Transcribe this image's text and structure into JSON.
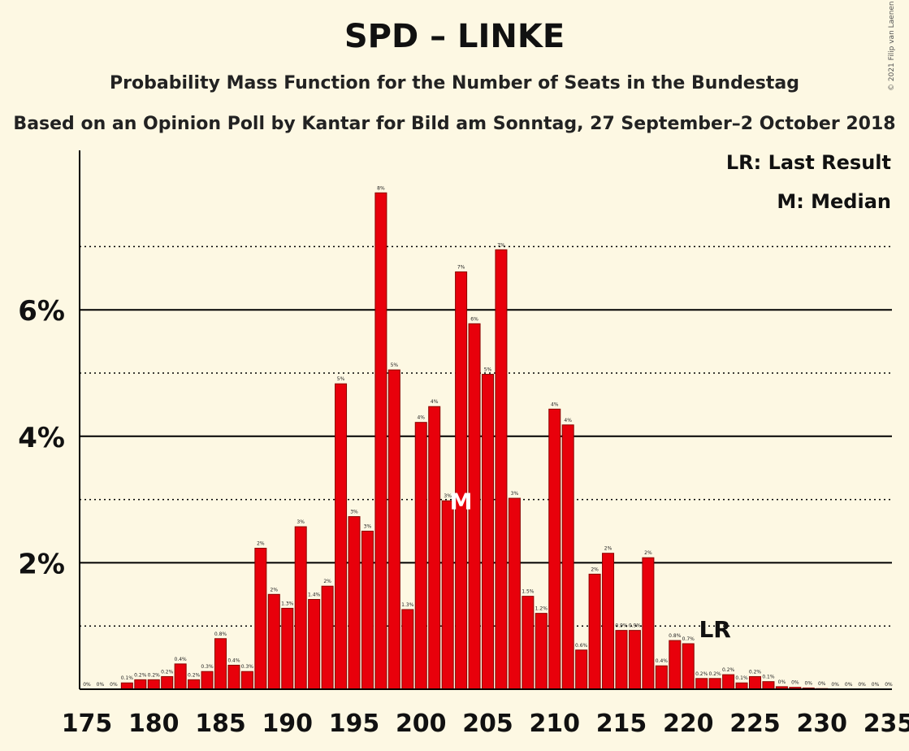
{
  "header": {
    "title": "SPD – LINKE",
    "subtitle": "Probability Mass Function for the Number of Seats in the Bundestag",
    "subtitle2": "Based on an Opinion Poll by Kantar for Bild am Sonntag, 27 September–2 October 2018",
    "copyright": "© 2021 Filip van Laenen"
  },
  "legend": {
    "lr": "LR: Last Result",
    "m": "M: Median"
  },
  "colors": {
    "background": "#fdf8e3",
    "bar_fill": "#e8000b",
    "bar_stroke": "#8a0000",
    "axis": "#000000"
  },
  "chart_data": {
    "type": "bar",
    "title": "SPD – LINKE",
    "xlabel": "",
    "ylabel": "",
    "ylim": [
      0,
      8
    ],
    "yticks": [
      {
        "value": 2,
        "label": "2%"
      },
      {
        "value": 4,
        "label": "4%"
      },
      {
        "value": 6,
        "label": "6%"
      }
    ],
    "xticks": [
      175,
      180,
      185,
      190,
      195,
      200,
      205,
      210,
      215,
      220,
      225,
      230,
      235
    ],
    "grid": true,
    "legend_position": "top-right",
    "x": [
      175,
      176,
      177,
      178,
      179,
      180,
      181,
      182,
      183,
      184,
      185,
      186,
      187,
      188,
      189,
      190,
      191,
      192,
      193,
      194,
      195,
      196,
      197,
      198,
      199,
      200,
      201,
      202,
      203,
      204,
      205,
      206,
      207,
      208,
      209,
      210,
      211,
      212,
      213,
      214,
      215,
      216,
      217,
      218,
      219,
      220,
      221,
      222,
      223,
      224,
      225,
      226,
      227,
      228,
      229,
      230,
      231,
      232,
      233,
      234,
      235
    ],
    "values": [
      0,
      0,
      0,
      0.1,
      0.15,
      0.15,
      0.2,
      0.4,
      0.15,
      0.28,
      0.8,
      0.38,
      0.28,
      2.23,
      1.5,
      1.28,
      2.57,
      1.42,
      1.63,
      4.83,
      2.73,
      2.5,
      7.85,
      5.05,
      1.26,
      4.22,
      4.47,
      2.98,
      6.6,
      5.78,
      4.98,
      6.95,
      3.02,
      1.47,
      1.2,
      4.43,
      4.18,
      0.62,
      1.82,
      2.15,
      0.93,
      0.93,
      2.08,
      0.37,
      0.77,
      0.72,
      0.17,
      0.17,
      0.23,
      0.1,
      0.2,
      0.12,
      0.04,
      0.03,
      0.02,
      0.01,
      0,
      0,
      0,
      0,
      0
    ],
    "labels": [
      "0%",
      "0%",
      "0%",
      "0.1%",
      "0.2%",
      "0.2%",
      "0.2%",
      "0.4%",
      "0.2%",
      "0.3%",
      "0.8%",
      "0.4%",
      "0.3%",
      "2%",
      "2%",
      "1.3%",
      "3%",
      "1.4%",
      "2%",
      "5%",
      "3%",
      "3%",
      "8%",
      "5%",
      "1.3%",
      "4%",
      "4%",
      "3%",
      "7%",
      "6%",
      "5%",
      "7%",
      "3%",
      "1.5%",
      "1.2%",
      "4%",
      "4%",
      "0.6%",
      "2%",
      "2%",
      "0.9%",
      "0.9%",
      "2%",
      "0.4%",
      "0.8%",
      "0.7%",
      "0.2%",
      "0.2%",
      "0.2%",
      "0.1%",
      "0.2%",
      "0.1%",
      "0%",
      "0%",
      "0%",
      "0%",
      "0%",
      "0%",
      "0%",
      "0%",
      "0%"
    ],
    "median": {
      "x": 203,
      "label": "M"
    },
    "last_result": {
      "x": 222,
      "label": "LR"
    }
  }
}
